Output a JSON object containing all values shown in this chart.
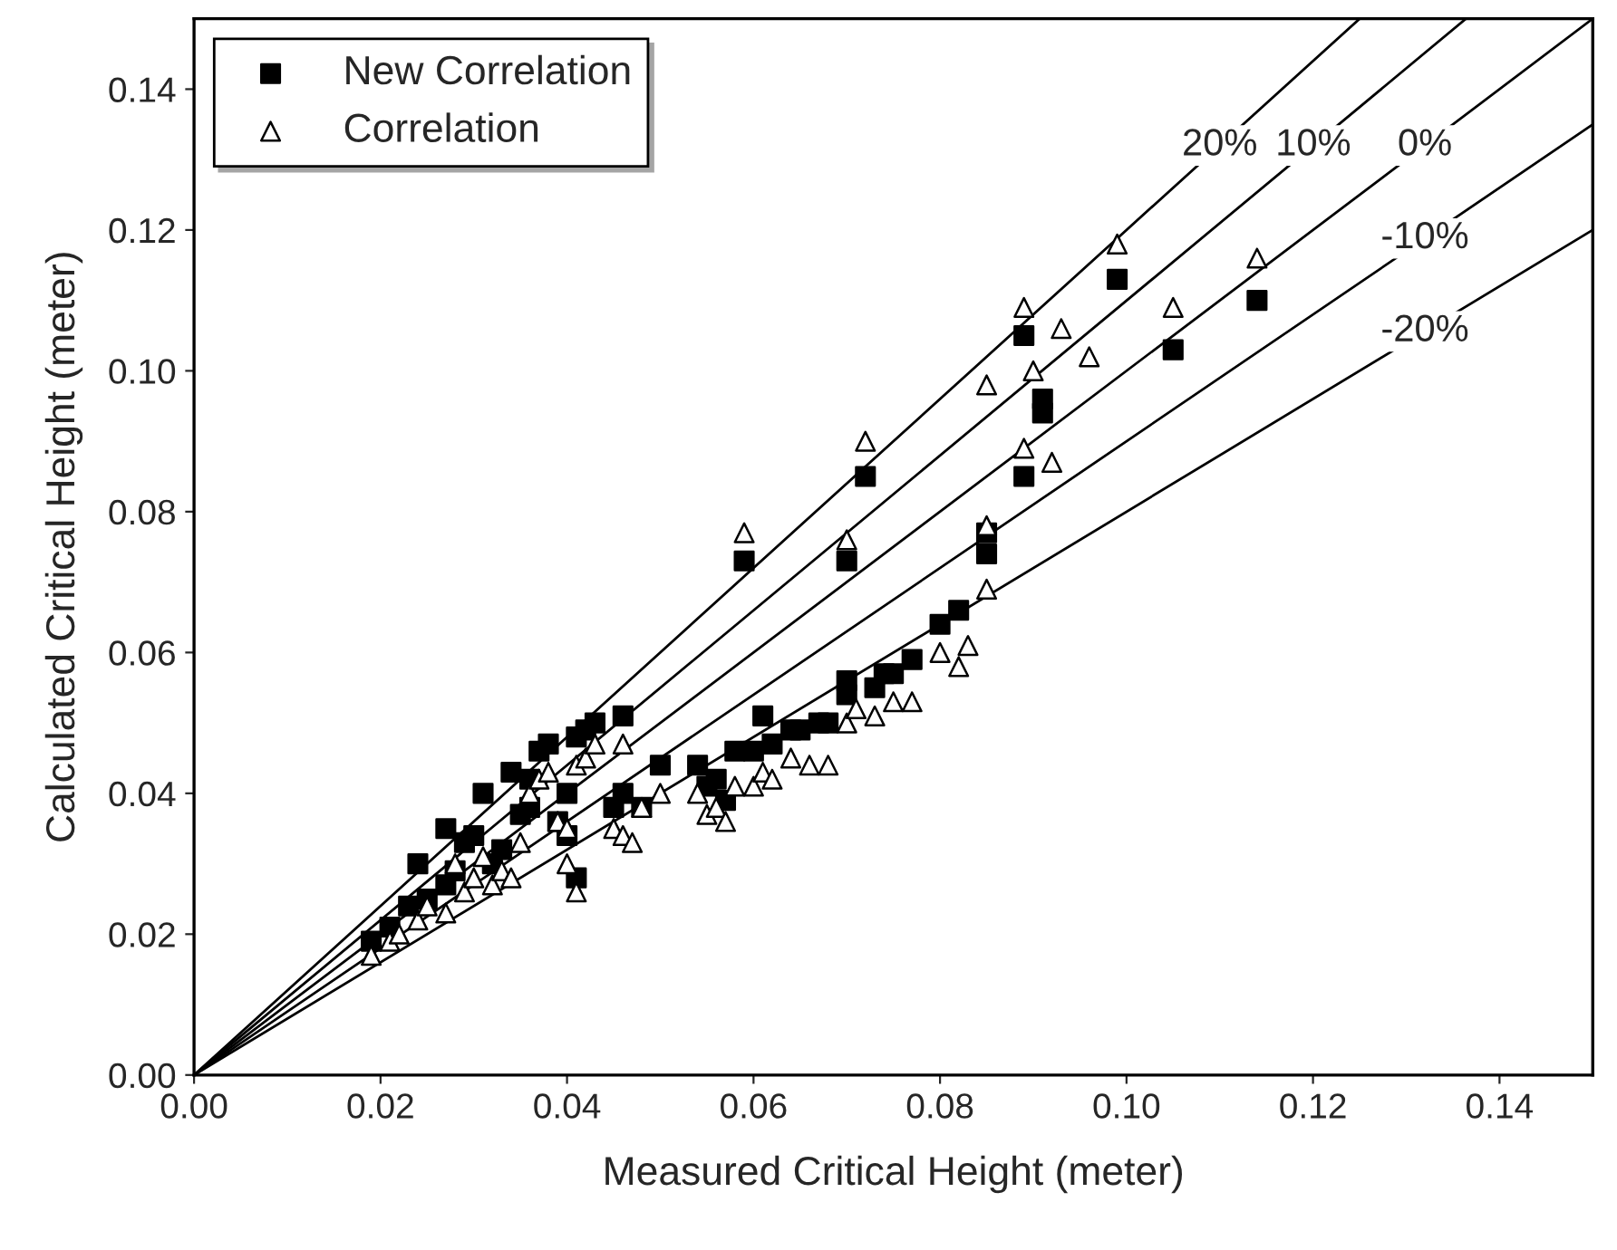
{
  "chart_data": {
    "type": "scatter",
    "xlabel": "Measured Critical Height (meter)",
    "ylabel": "Calculated Critical Height (meter)",
    "xlim": [
      0,
      0.15
    ],
    "ylim": [
      0,
      0.15
    ],
    "xticks": [
      {
        "value": 0,
        "label": "0.00"
      },
      {
        "value": 0.02,
        "label": "0.02"
      },
      {
        "value": 0.04,
        "label": "0.04"
      },
      {
        "value": 0.06,
        "label": "0.06"
      },
      {
        "value": 0.08,
        "label": "0.08"
      },
      {
        "value": 0.1,
        "label": "0.10"
      },
      {
        "value": 0.12,
        "label": "0.12"
      },
      {
        "value": 0.14,
        "label": "0.14"
      }
    ],
    "yticks": [
      {
        "value": 0,
        "label": "0.00"
      },
      {
        "value": 0.02,
        "label": "0.02"
      },
      {
        "value": 0.04,
        "label": "0.04"
      },
      {
        "value": 0.06,
        "label": "0.06"
      },
      {
        "value": 0.08,
        "label": "0.08"
      },
      {
        "value": 0.1,
        "label": "0.10"
      },
      {
        "value": 0.12,
        "label": "0.12"
      },
      {
        "value": 0.14,
        "label": "0.14"
      }
    ],
    "legend": "top left",
    "grid": false,
    "series": [
      {
        "name": "New Correlation",
        "color": "#000000",
        "marker": "square",
        "x": [
          0.019,
          0.021,
          0.023,
          0.024,
          0.025,
          0.027,
          0.027,
          0.028,
          0.029,
          0.03,
          0.031,
          0.032,
          0.033,
          0.034,
          0.035,
          0.036,
          0.036,
          0.037,
          0.038,
          0.039,
          0.04,
          0.04,
          0.041,
          0.041,
          0.042,
          0.043,
          0.045,
          0.046,
          0.046,
          0.048,
          0.05,
          0.054,
          0.055,
          0.056,
          0.057,
          0.058,
          0.059,
          0.06,
          0.061,
          0.062,
          0.064,
          0.065,
          0.067,
          0.068,
          0.07,
          0.07,
          0.07,
          0.072,
          0.073,
          0.074,
          0.075,
          0.077,
          0.08,
          0.082,
          0.085,
          0.085,
          0.089,
          0.089,
          0.091,
          0.091,
          0.099,
          0.105,
          0.114
        ],
        "values": [
          0.019,
          0.021,
          0.024,
          0.03,
          0.025,
          0.027,
          0.035,
          0.029,
          0.033,
          0.034,
          0.04,
          0.03,
          0.032,
          0.043,
          0.037,
          0.038,
          0.042,
          0.046,
          0.047,
          0.036,
          0.034,
          0.04,
          0.048,
          0.028,
          0.049,
          0.05,
          0.038,
          0.04,
          0.051,
          0.038,
          0.044,
          0.044,
          0.041,
          0.042,
          0.039,
          0.046,
          0.073,
          0.046,
          0.051,
          0.047,
          0.049,
          0.049,
          0.05,
          0.05,
          0.054,
          0.073,
          0.056,
          0.085,
          0.055,
          0.057,
          0.057,
          0.059,
          0.064,
          0.066,
          0.074,
          0.077,
          0.105,
          0.085,
          0.094,
          0.096,
          0.113,
          0.103,
          0.11
        ]
      },
      {
        "name": "Correlation",
        "color": "#000000",
        "marker": "triangle",
        "x": [
          0.019,
          0.021,
          0.022,
          0.024,
          0.025,
          0.027,
          0.028,
          0.029,
          0.03,
          0.031,
          0.032,
          0.033,
          0.034,
          0.035,
          0.036,
          0.037,
          0.038,
          0.039,
          0.04,
          0.04,
          0.041,
          0.041,
          0.042,
          0.043,
          0.045,
          0.046,
          0.046,
          0.047,
          0.048,
          0.05,
          0.054,
          0.055,
          0.056,
          0.057,
          0.058,
          0.059,
          0.06,
          0.061,
          0.062,
          0.064,
          0.066,
          0.068,
          0.07,
          0.07,
          0.071,
          0.072,
          0.073,
          0.075,
          0.077,
          0.08,
          0.082,
          0.083,
          0.085,
          0.085,
          0.085,
          0.089,
          0.089,
          0.09,
          0.092,
          0.093,
          0.096,
          0.099,
          0.105,
          0.114
        ],
        "values": [
          0.017,
          0.019,
          0.02,
          0.022,
          0.024,
          0.023,
          0.03,
          0.026,
          0.028,
          0.031,
          0.027,
          0.029,
          0.028,
          0.033,
          0.04,
          0.042,
          0.043,
          0.036,
          0.03,
          0.035,
          0.026,
          0.044,
          0.045,
          0.047,
          0.035,
          0.034,
          0.047,
          0.033,
          0.038,
          0.04,
          0.04,
          0.037,
          0.038,
          0.036,
          0.041,
          0.077,
          0.041,
          0.043,
          0.042,
          0.045,
          0.044,
          0.044,
          0.05,
          0.076,
          0.052,
          0.09,
          0.051,
          0.053,
          0.053,
          0.06,
          0.058,
          0.061,
          0.069,
          0.078,
          0.098,
          0.109,
          0.089,
          0.1,
          0.087,
          0.106,
          0.102,
          0.118,
          0.109,
          0.116
        ]
      },
      {
        "name": "20%",
        "type": "line",
        "color": "#000000",
        "marker": "none",
        "x": [
          0,
          0.125
        ],
        "values": [
          0,
          0.15
        ]
      },
      {
        "name": "10%",
        "type": "line",
        "color": "#000000",
        "marker": "none",
        "x": [
          0,
          0.1364
        ],
        "values": [
          0,
          0.15
        ]
      },
      {
        "name": "0%",
        "type": "line",
        "color": "#000000",
        "marker": "none",
        "x": [
          0,
          0.15
        ],
        "values": [
          0,
          0.15
        ]
      },
      {
        "name": "-10%",
        "type": "line",
        "color": "#000000",
        "marker": "none",
        "x": [
          0,
          0.15
        ],
        "values": [
          0,
          0.135
        ]
      },
      {
        "name": "-20%",
        "type": "line",
        "color": "#000000",
        "marker": "none",
        "x": [
          0,
          0.15
        ],
        "values": [
          0,
          0.12
        ]
      }
    ]
  }
}
